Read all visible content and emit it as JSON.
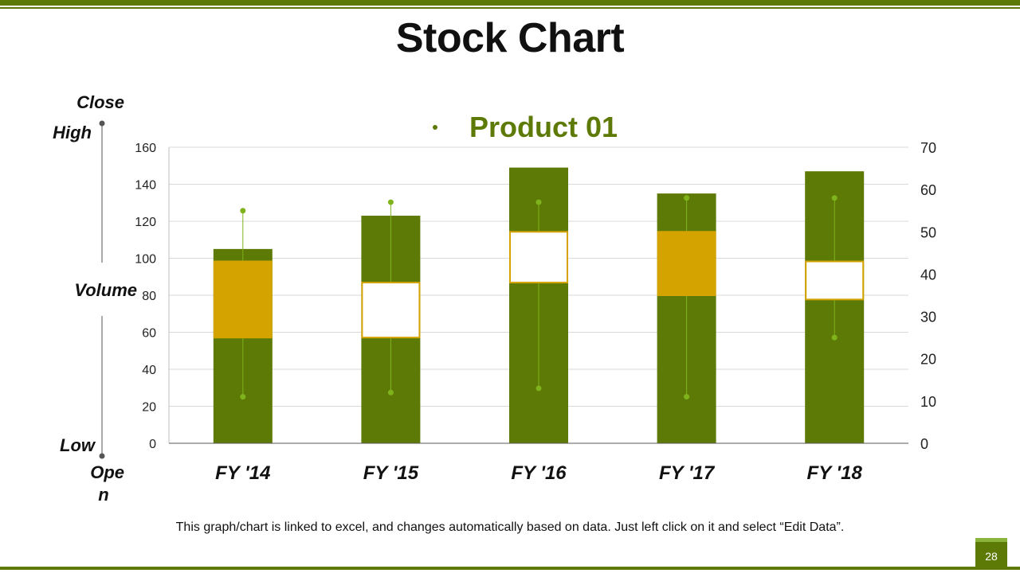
{
  "slide": {
    "title": "Stock Chart",
    "footnote": "This graph/chart is linked to excel, and changes automatically based on data. Just left click on it and select “Edit Data”.",
    "page_number": "28"
  },
  "side_legend": {
    "close": "Close",
    "high": "High",
    "volume": "Volume",
    "low": "Low",
    "open_line1": "Ope",
    "open_line2": "n"
  },
  "chart_data": {
    "type": "stock",
    "legend": [
      "Product 01"
    ],
    "categories": [
      "FY '14",
      "FY '15",
      "FY '16",
      "FY '17",
      "FY '18"
    ],
    "volume": [
      105,
      123,
      149,
      135,
      147
    ],
    "open": [
      43,
      25,
      38,
      50,
      34
    ],
    "high": [
      55,
      57,
      57,
      58,
      58
    ],
    "low": [
      11,
      12,
      13,
      11,
      25
    ],
    "close": [
      25,
      38,
      50,
      35,
      43
    ],
    "y_left": {
      "min": 0,
      "max": 160,
      "ticks": [
        0,
        20,
        40,
        60,
        80,
        100,
        120,
        140,
        160
      ]
    },
    "y_right": {
      "min": 0,
      "max": 70,
      "ticks": [
        0,
        10,
        20,
        30,
        40,
        50,
        60,
        70
      ]
    },
    "grid": true,
    "legend_position": "top",
    "colors": {
      "volume": "#5e7a06",
      "down_box": "#d4a300",
      "up_box": "#ffffff",
      "box_border": "#d4a300",
      "whisker": "#7fb31c",
      "legend_text": "#5e7a06"
    }
  }
}
